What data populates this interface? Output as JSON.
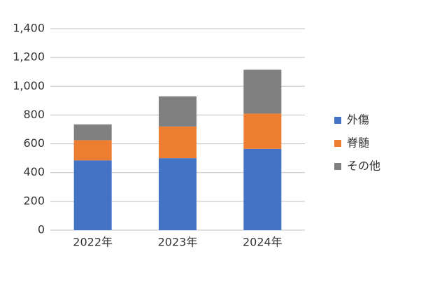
{
  "chart_data": {
    "type": "stacked_bar",
    "categories": [
      "2022年",
      "2023年",
      "2024年"
    ],
    "series": [
      {
        "name": "外傷",
        "color": "#4472c4",
        "values": [
          485,
          500,
          565
        ]
      },
      {
        "name": "脊髄",
        "color": "#ed7d31",
        "values": [
          140,
          220,
          245
        ]
      },
      {
        "name": "その他",
        "color": "#808080",
        "values": [
          110,
          210,
          305
        ]
      }
    ],
    "ylim": [
      0,
      1400
    ],
    "yticks": [
      0,
      200,
      400,
      600,
      800,
      {
        "value": 1000,
        "label": "1,000"
      },
      {
        "value": 1200,
        "label": "1,200"
      },
      {
        "value": 1400,
        "label": "1,400"
      }
    ],
    "grid": true,
    "legend": "right"
  }
}
